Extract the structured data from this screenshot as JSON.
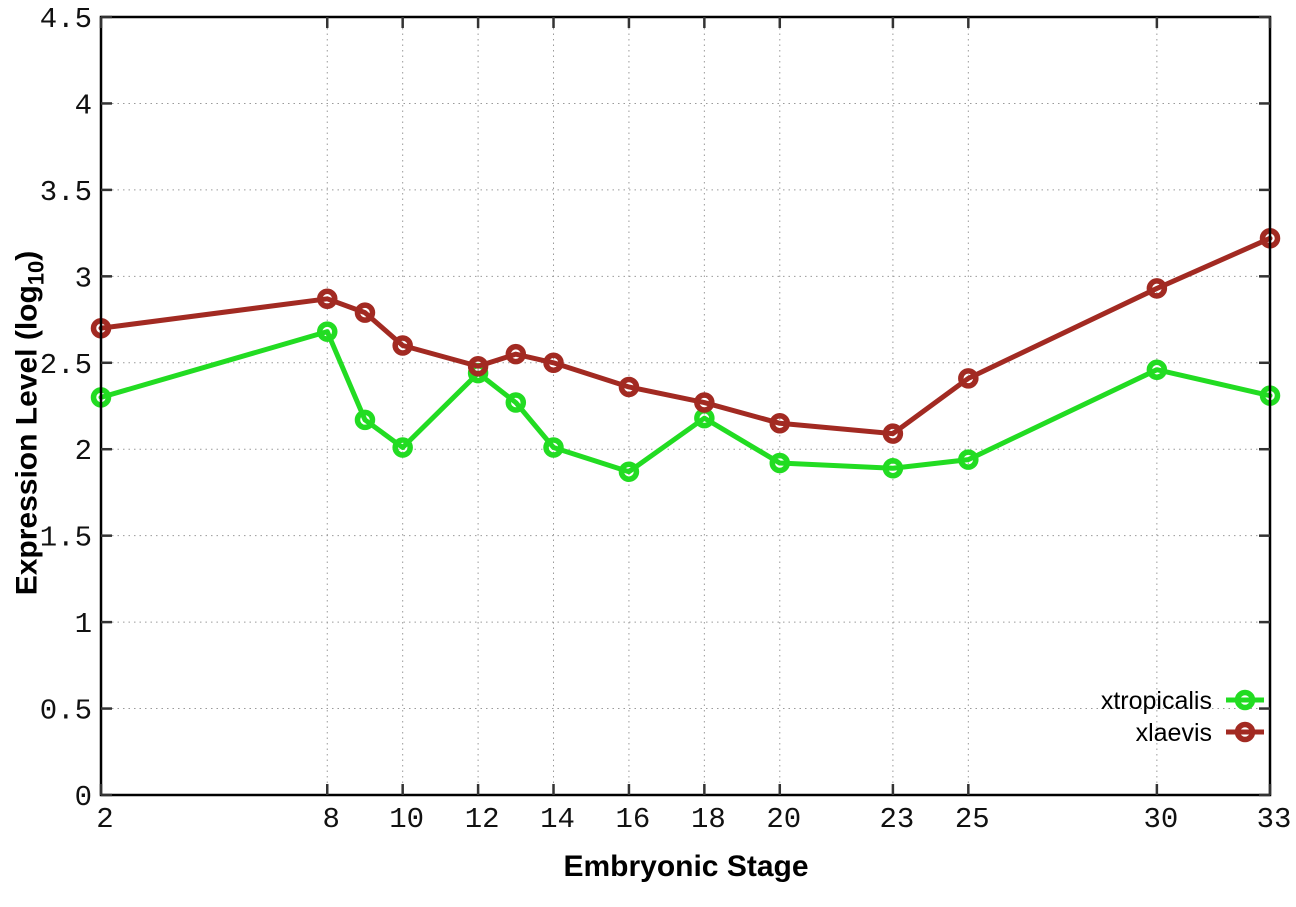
{
  "chart_data": {
    "type": "line",
    "title": "",
    "xlabel": "Embryonic Stage",
    "ylabel": "Expression Level (log10)",
    "ylabel_rich": {
      "pre": "Expression Level (log",
      "sub": "10",
      "post": ")"
    },
    "xlim": [
      2,
      33
    ],
    "ylim": [
      0,
      4.5
    ],
    "xticks": [
      "2",
      "8",
      "10",
      "12",
      "14",
      "16",
      "18",
      "20",
      "23",
      "25",
      "30",
      "33"
    ],
    "xtick_values": [
      2,
      8,
      10,
      12,
      14,
      16,
      18,
      20,
      23,
      25,
      30,
      33
    ],
    "yticks": [
      "0",
      "0.5",
      "1",
      "1.5",
      "2",
      "2.5",
      "3",
      "3.5",
      "4",
      "4.5"
    ],
    "ytick_values": [
      0,
      0.5,
      1,
      1.5,
      2,
      2.5,
      3,
      3.5,
      4,
      4.5
    ],
    "grid": true,
    "legend_position": "inside-bottom-right",
    "x": [
      2,
      8,
      9,
      10,
      12,
      13,
      14,
      16,
      18,
      20,
      23,
      25,
      30,
      33
    ],
    "series": [
      {
        "name": "xtropicalis",
        "color": "#22dc22",
        "marker": "open-circle",
        "values": [
          2.3,
          2.68,
          2.17,
          2.01,
          2.44,
          2.27,
          2.01,
          1.87,
          2.18,
          1.92,
          1.89,
          1.94,
          2.46,
          2.31
        ]
      },
      {
        "name": "xlaevis",
        "color": "#a22a22",
        "marker": "open-circle",
        "values": [
          2.7,
          2.87,
          2.79,
          2.6,
          2.48,
          2.55,
          2.5,
          2.36,
          2.27,
          2.15,
          2.09,
          2.41,
          2.93,
          3.22
        ]
      }
    ],
    "colors": {
      "grid": "#9a9a9a",
      "border": "#000000",
      "tick": "#333333",
      "tick_label": "#111111",
      "background": "#ffffff"
    }
  }
}
